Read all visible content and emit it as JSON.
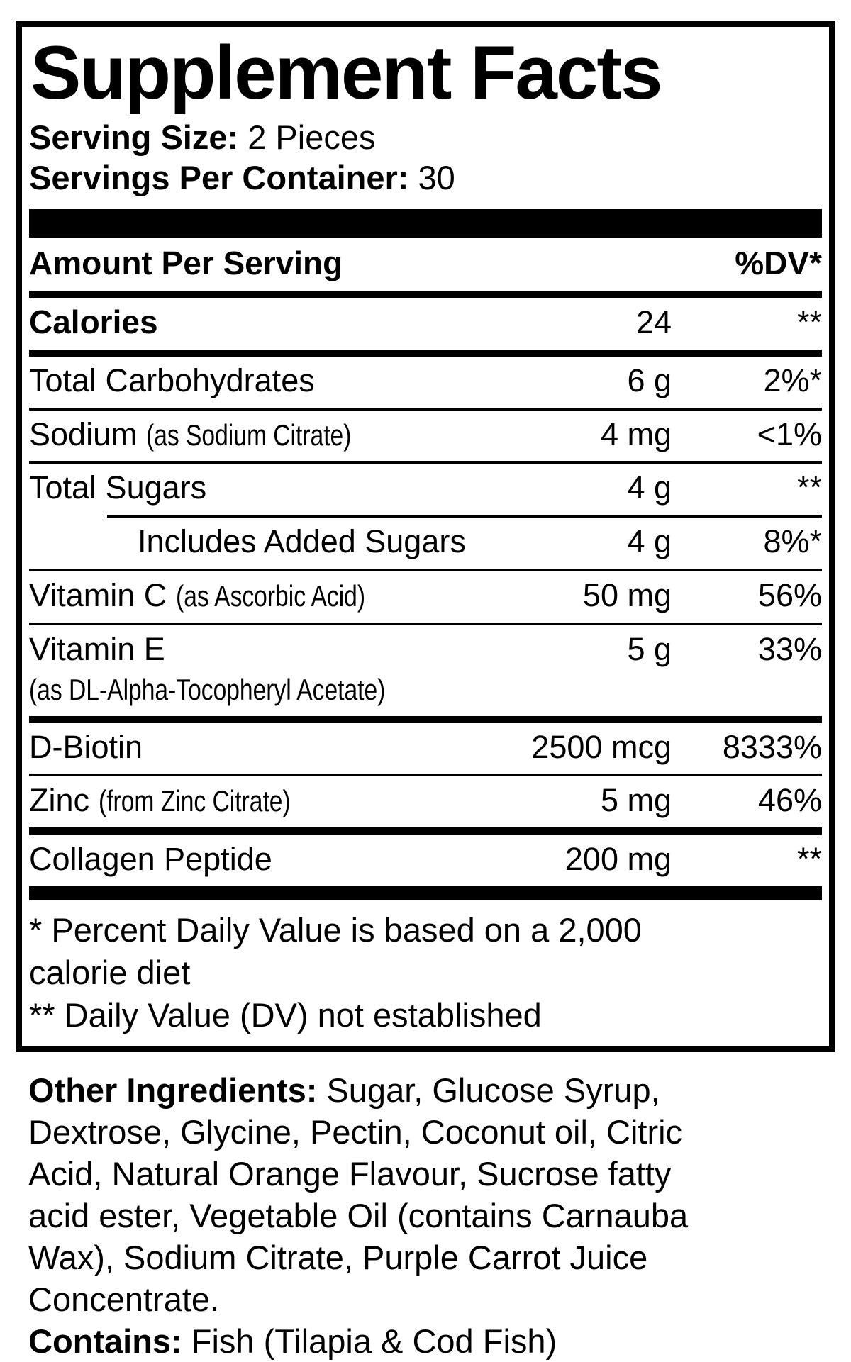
{
  "panel": {
    "title": "Supplement Facts"
  },
  "serving": {
    "size_label": "Serving Size:",
    "size_value": "2 Pieces",
    "servings_label": "Servings Per Container:",
    "servings_value": "30"
  },
  "header": {
    "amount_label": "Amount Per Serving",
    "dv_label": "%DV*"
  },
  "rows": [
    {
      "name": "Calories",
      "amount": "24",
      "dv": "**"
    },
    {
      "name": "Total Carbohydrates",
      "amount": "6 g",
      "dv": "2%*"
    },
    {
      "name": "Sodium",
      "note": "(as Sodium Citrate)",
      "amount": "4 mg",
      "dv": "<1%"
    },
    {
      "name": "Total Sugars",
      "amount": "4 g",
      "dv": "**"
    },
    {
      "name": "Includes Added Sugars",
      "amount": "4 g",
      "dv": "8%*"
    },
    {
      "name": "Vitamin C",
      "note": "(as Ascorbic Acid)",
      "amount": "50 mg",
      "dv": "56%"
    },
    {
      "name": "Vitamin E",
      "note2": "(as DL-Alpha-Tocopheryl Acetate)",
      "amount": "5 g",
      "dv": "33%"
    },
    {
      "name": "D-Biotin",
      "amount": "2500 mcg",
      "dv": "8333%"
    },
    {
      "name": "Zinc",
      "note": "(from Zinc Citrate)",
      "amount": "5 mg",
      "dv": "46%"
    },
    {
      "name": "Collagen Peptide",
      "amount": "200 mg",
      "dv": "**"
    }
  ],
  "footnotes": {
    "line1": "* Percent Daily Value is based on a 2,000",
    "line2": "calorie diet",
    "line3": "** Daily Value (DV) not established"
  },
  "other_ingredients": {
    "label": "Other Ingredients: ",
    "lines": [
      "Sugar, Glucose Syrup,",
      "Dextrose, Glycine, Pectin, Coconut oil, Citric",
      "Acid, Natural Orange Flavour, Sucrose fatty",
      "acid ester, Vegetable Oil (contains Carnauba",
      "Wax), Sodium Citrate, Purple Carrot Juice",
      "Concentrate."
    ]
  },
  "contains": {
    "label": "Contains: ",
    "value": "Fish (Tilapia & Cod Fish)"
  },
  "colors": {
    "ink": "#000000",
    "background": "#ffffff"
  }
}
